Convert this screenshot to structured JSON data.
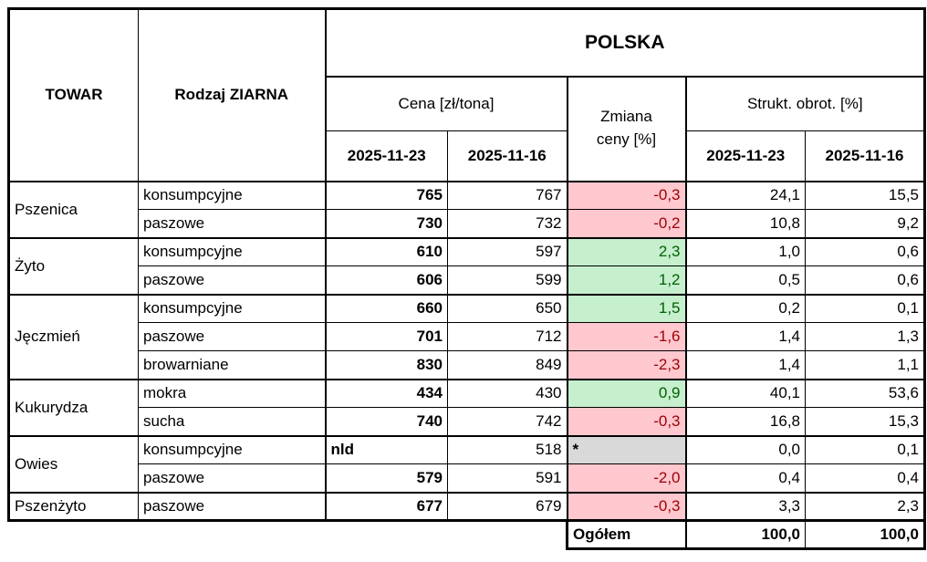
{
  "header": {
    "towar_label": "TOWAR",
    "rodzaj_label": "Rodzaj ZIARNA",
    "region_label": "POLSKA",
    "cena_label": "Cena [zł/tona]",
    "zmiana_label_line1": "Zmiana",
    "zmiana_label_line2": "ceny [%]",
    "strukt_label": "Strukt. obrot. [%]",
    "cena_dates": [
      "2025-11-23",
      "2025-11-16"
    ],
    "strukt_dates": [
      "2025-11-23",
      "2025-11-16"
    ]
  },
  "rows": [
    {
      "towar": "Pszenica",
      "span": 2,
      "group_start": true,
      "rodzaj": "konsumpcyjne",
      "price_23": "765",
      "price_16": "767",
      "change": "-0,3",
      "change_type": "down",
      "share_23": "24,1",
      "share_16": "15,5"
    },
    {
      "towar": null,
      "span": 0,
      "group_start": false,
      "rodzaj": "paszowe",
      "price_23": "730",
      "price_16": "732",
      "change": "-0,2",
      "change_type": "down",
      "share_23": "10,8",
      "share_16": "9,2"
    },
    {
      "towar": "Żyto",
      "span": 2,
      "group_start": true,
      "rodzaj": "konsumpcyjne",
      "price_23": "610",
      "price_16": "597",
      "change": "2,3",
      "change_type": "up",
      "share_23": "1,0",
      "share_16": "0,6"
    },
    {
      "towar": null,
      "span": 0,
      "group_start": false,
      "rodzaj": "paszowe",
      "price_23": "606",
      "price_16": "599",
      "change": "1,2",
      "change_type": "up",
      "share_23": "0,5",
      "share_16": "0,6"
    },
    {
      "towar": "Jęczmień",
      "span": 3,
      "group_start": true,
      "rodzaj": "konsumpcyjne",
      "price_23": "660",
      "price_16": "650",
      "change": "1,5",
      "change_type": "up",
      "share_23": "0,2",
      "share_16": "0,1"
    },
    {
      "towar": null,
      "span": 0,
      "group_start": false,
      "rodzaj": "paszowe",
      "price_23": "701",
      "price_16": "712",
      "change": "-1,6",
      "change_type": "down",
      "share_23": "1,4",
      "share_16": "1,3"
    },
    {
      "towar": null,
      "span": 0,
      "group_start": false,
      "rodzaj": "browarniane",
      "price_23": "830",
      "price_16": "849",
      "change": "-2,3",
      "change_type": "down",
      "share_23": "1,4",
      "share_16": "1,1"
    },
    {
      "towar": "Kukurydza",
      "span": 2,
      "group_start": true,
      "rodzaj": "mokra",
      "price_23": "434",
      "price_16": "430",
      "change": "0,9",
      "change_type": "up",
      "share_23": "40,1",
      "share_16": "53,6"
    },
    {
      "towar": null,
      "span": 0,
      "group_start": false,
      "rodzaj": "sucha",
      "price_23": "740",
      "price_16": "742",
      "change": "-0,3",
      "change_type": "down",
      "share_23": "16,8",
      "share_16": "15,3"
    },
    {
      "towar": "Owies",
      "span": 2,
      "group_start": true,
      "rodzaj": "konsumpcyjne",
      "price_23": "nld",
      "price_16": "518",
      "change": "*",
      "change_type": "na",
      "share_23": "0,0",
      "share_16": "0,1"
    },
    {
      "towar": null,
      "span": 0,
      "group_start": false,
      "rodzaj": "paszowe",
      "price_23": "579",
      "price_16": "591",
      "change": "-2,0",
      "change_type": "down",
      "share_23": "0,4",
      "share_16": "0,4"
    },
    {
      "towar": "Pszenżyto",
      "span": 1,
      "group_start": true,
      "rodzaj": "paszowe",
      "price_23": "677",
      "price_16": "679",
      "change": "-0,3",
      "change_type": "down",
      "share_23": "3,3",
      "share_16": "2,3"
    }
  ],
  "footer": {
    "label": "Ogółem",
    "total_23": "100,0",
    "total_16": "100,0"
  },
  "colors": {
    "decrease_bg": "#FFC7CE",
    "decrease_text": "#9C0006",
    "increase_bg": "#C6EFCE",
    "increase_text": "#006100",
    "na_bg": "#D9D9D9",
    "border": "#000000"
  }
}
